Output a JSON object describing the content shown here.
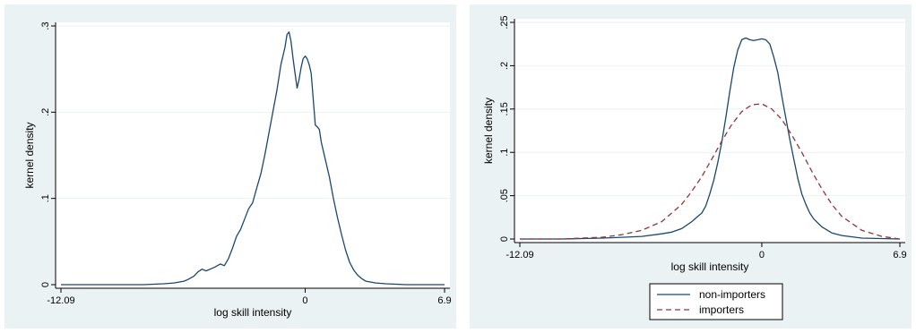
{
  "colors": {
    "panel_background": "#eaf2f3",
    "plot_background": "#ffffff",
    "series_solid": "#1a476f",
    "series_dashed": "#90353b"
  },
  "chart_data": [
    {
      "type": "line",
      "title": "",
      "xlabel": "log skill intensity",
      "ylabel": "kernel density",
      "xlim": [
        -12.09,
        6.9
      ],
      "ylim": [
        0,
        0.3
      ],
      "x_ticks": [
        -12.09,
        0,
        6.9
      ],
      "x_tick_labels": [
        "-12.09",
        "0",
        "6.9"
      ],
      "y_ticks": [
        0,
        0.1,
        0.2,
        0.3
      ],
      "y_tick_labels": [
        "0",
        ".1",
        ".2",
        ".3"
      ],
      "grid": true,
      "legend": false,
      "series": [
        {
          "style": "solid",
          "color": "#1a476f",
          "x": [
            -12.09,
            -8.0,
            -7.0,
            -6.5,
            -6.0,
            -5.8,
            -5.5,
            -5.3,
            -5.1,
            -4.9,
            -4.5,
            -4.2,
            -4.0,
            -3.8,
            -3.6,
            -3.4,
            -3.2,
            -3.0,
            -2.8,
            -2.6,
            -2.4,
            -2.2,
            -2.0,
            -1.8,
            -1.6,
            -1.4,
            -1.2,
            -1.0,
            -0.9,
            -0.8,
            -0.7,
            -0.6,
            -0.5,
            -0.4,
            -0.3,
            -0.2,
            -0.1,
            0.0,
            0.1,
            0.2,
            0.3,
            0.4,
            0.5,
            0.6,
            0.7,
            0.8,
            1.0,
            1.2,
            1.4,
            1.6,
            1.8,
            2.0,
            2.2,
            2.4,
            2.6,
            2.8,
            3.0,
            3.5,
            4.0,
            5.0,
            6.9
          ],
          "y": [
            0.0,
            0.0,
            0.001,
            0.002,
            0.004,
            0.006,
            0.01,
            0.015,
            0.018,
            0.016,
            0.02,
            0.024,
            0.022,
            0.03,
            0.042,
            0.056,
            0.064,
            0.076,
            0.088,
            0.095,
            0.112,
            0.128,
            0.15,
            0.175,
            0.2,
            0.225,
            0.255,
            0.275,
            0.29,
            0.293,
            0.282,
            0.262,
            0.245,
            0.228,
            0.238,
            0.252,
            0.262,
            0.265,
            0.262,
            0.255,
            0.245,
            0.215,
            0.185,
            0.183,
            0.18,
            0.165,
            0.145,
            0.125,
            0.1,
            0.078,
            0.058,
            0.04,
            0.026,
            0.017,
            0.011,
            0.007,
            0.004,
            0.002,
            0.001,
            0.0,
            0.0
          ]
        }
      ]
    },
    {
      "type": "line",
      "title": "",
      "xlabel": "log skill intensity",
      "ylabel": "kernel density",
      "xlim": [
        -12.09,
        6.9
      ],
      "ylim": [
        0,
        0.25
      ],
      "x_ticks": [
        -12.09,
        0,
        6.9
      ],
      "x_tick_labels": [
        "-12.09",
        "0",
        "6.9"
      ],
      "y_ticks": [
        0,
        0.05,
        0.1,
        0.15,
        0.2,
        0.25
      ],
      "y_tick_labels": [
        "0",
        ".05",
        ".1",
        ".15",
        ".2",
        ".25"
      ],
      "grid": true,
      "legend": true,
      "legend_position": "bottom",
      "series": [
        {
          "name": "non-importers",
          "style": "solid",
          "color": "#1a476f",
          "x": [
            -12.09,
            -10.0,
            -8.0,
            -7.0,
            -6.0,
            -5.0,
            -4.5,
            -4.0,
            -3.5,
            -3.2,
            -3.0,
            -2.8,
            -2.6,
            -2.4,
            -2.2,
            -2.0,
            -1.8,
            -1.6,
            -1.4,
            -1.2,
            -1.0,
            -0.8,
            -0.6,
            -0.4,
            -0.2,
            0.0,
            0.2,
            0.4,
            0.6,
            0.8,
            1.0,
            1.2,
            1.4,
            1.6,
            1.8,
            2.0,
            2.2,
            2.4,
            2.6,
            3.0,
            3.5,
            4.0,
            5.0,
            6.9
          ],
          "y": [
            0.0,
            0.0,
            0.001,
            0.002,
            0.003,
            0.006,
            0.008,
            0.012,
            0.02,
            0.026,
            0.03,
            0.038,
            0.052,
            0.068,
            0.088,
            0.112,
            0.14,
            0.17,
            0.198,
            0.218,
            0.23,
            0.232,
            0.23,
            0.229,
            0.23,
            0.231,
            0.23,
            0.225,
            0.21,
            0.192,
            0.165,
            0.14,
            0.115,
            0.092,
            0.07,
            0.052,
            0.04,
            0.03,
            0.023,
            0.014,
            0.007,
            0.004,
            0.001,
            0.0
          ]
        },
        {
          "name": "importers",
          "style": "dashed",
          "color": "#90353b",
          "x": [
            -12.09,
            -10.0,
            -9.0,
            -8.0,
            -7.0,
            -6.0,
            -5.0,
            -4.0,
            -3.5,
            -3.0,
            -2.5,
            -2.0,
            -1.5,
            -1.0,
            -0.5,
            0.0,
            0.5,
            1.0,
            1.5,
            2.0,
            2.5,
            3.0,
            3.5,
            4.0,
            5.0,
            6.0,
            6.9
          ],
          "y": [
            0.0,
            0.0,
            0.001,
            0.002,
            0.005,
            0.01,
            0.02,
            0.04,
            0.055,
            0.072,
            0.092,
            0.113,
            0.132,
            0.147,
            0.155,
            0.156,
            0.15,
            0.138,
            0.12,
            0.1,
            0.078,
            0.058,
            0.04,
            0.026,
            0.01,
            0.003,
            0.0
          ]
        }
      ]
    }
  ]
}
